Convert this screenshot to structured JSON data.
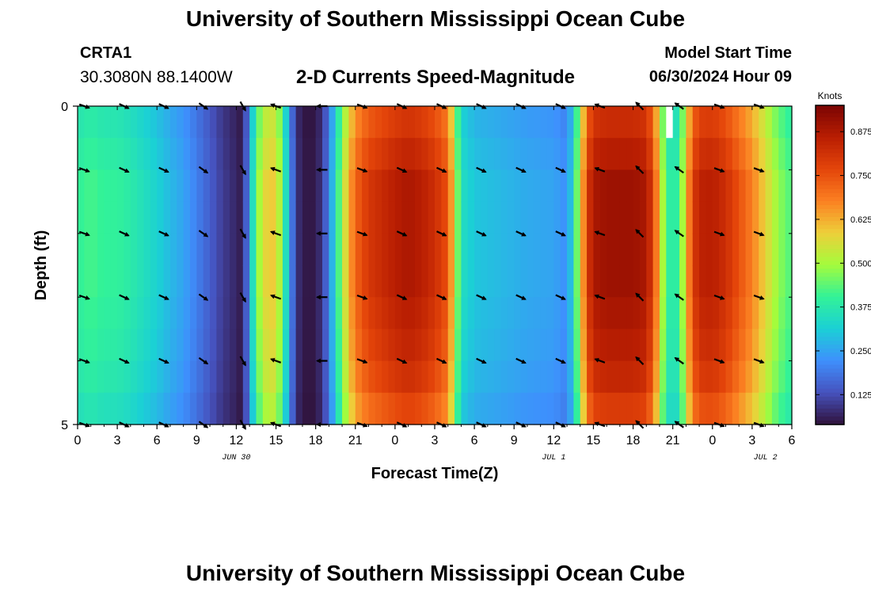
{
  "header": {
    "title": "University of Southern Mississippi Ocean Cube",
    "station_id": "CRTA1",
    "station_coords": "30.3080N  88.1400W",
    "model_label": "Model Start Time",
    "model_time": "06/30/2024 Hour 09"
  },
  "footer": {
    "title": "University of Southern Mississippi Ocean Cube"
  },
  "chart_data": {
    "type": "heatmap",
    "title": "2-D Currents Speed-Magnitude",
    "xlabel": "Forecast Time(Z)",
    "ylabel": "Depth (ft)",
    "colorbar_label": "Knots",
    "xlim_hours": [
      0,
      54
    ],
    "ylim": [
      0,
      5
    ],
    "xticks": [
      {
        "hour": 0,
        "label": "0"
      },
      {
        "hour": 3,
        "label": "3"
      },
      {
        "hour": 6,
        "label": "6"
      },
      {
        "hour": 9,
        "label": "9"
      },
      {
        "hour": 12,
        "label": "12"
      },
      {
        "hour": 15,
        "label": "15"
      },
      {
        "hour": 18,
        "label": "18"
      },
      {
        "hour": 21,
        "label": "21"
      },
      {
        "hour": 24,
        "label": "0"
      },
      {
        "hour": 27,
        "label": "3"
      },
      {
        "hour": 30,
        "label": "6"
      },
      {
        "hour": 33,
        "label": "9"
      },
      {
        "hour": 36,
        "label": "12"
      },
      {
        "hour": 39,
        "label": "15"
      },
      {
        "hour": 42,
        "label": "18"
      },
      {
        "hour": 45,
        "label": "21"
      },
      {
        "hour": 48,
        "label": "0"
      },
      {
        "hour": 51,
        "label": "3"
      },
      {
        "hour": 54,
        "label": "6"
      }
    ],
    "date_labels": [
      {
        "hour": 12,
        "label": "JUN 30"
      },
      {
        "hour": 36,
        "label": "JUL 1"
      },
      {
        "hour": 52,
        "label": "JUL 2"
      }
    ],
    "yticks": [
      {
        "value": 0,
        "label": "0"
      },
      {
        "value": 5,
        "label": "5"
      }
    ],
    "colorbar": {
      "min": 0.04,
      "max": 0.95,
      "ticks": [
        0.125,
        0.25,
        0.375,
        0.5,
        0.625,
        0.75,
        0.875
      ],
      "tick_labels": [
        "0.125",
        "0.250",
        "0.375",
        "0.500",
        "0.625",
        "0.750",
        "0.875"
      ]
    },
    "time_step_hours": 0.5,
    "depth_rows": 10,
    "speed_profile_knots": [
      [
        0,
        0.4
      ],
      [
        1,
        0.42
      ],
      [
        2,
        0.4
      ],
      [
        3,
        0.4
      ],
      [
        4,
        0.38
      ],
      [
        5,
        0.35
      ],
      [
        6,
        0.32
      ],
      [
        7,
        0.28
      ],
      [
        8,
        0.25
      ],
      [
        9,
        0.2
      ],
      [
        10,
        0.15
      ],
      [
        11,
        0.1
      ],
      [
        12,
        0.07
      ],
      [
        12.5,
        0.05
      ],
      [
        13,
        0.25
      ],
      [
        13.5,
        0.45
      ],
      [
        14,
        0.55
      ],
      [
        14.5,
        0.6
      ],
      [
        15,
        0.58
      ],
      [
        15.5,
        0.45
      ],
      [
        16,
        0.25
      ],
      [
        16.5,
        0.1
      ],
      [
        17,
        0.05
      ],
      [
        18,
        0.05
      ],
      [
        18.5,
        0.1
      ],
      [
        19,
        0.2
      ],
      [
        19.5,
        0.35
      ],
      [
        20,
        0.5
      ],
      [
        20.5,
        0.62
      ],
      [
        21,
        0.72
      ],
      [
        22,
        0.8
      ],
      [
        24,
        0.86
      ],
      [
        25,
        0.88
      ],
      [
        26,
        0.86
      ],
      [
        27,
        0.82
      ],
      [
        28,
        0.75
      ],
      [
        28.5,
        0.55
      ],
      [
        29,
        0.35
      ],
      [
        30,
        0.3
      ],
      [
        32,
        0.28
      ],
      [
        34,
        0.26
      ],
      [
        36,
        0.25
      ],
      [
        37,
        0.22
      ],
      [
        37.5,
        0.35
      ],
      [
        38,
        0.55
      ],
      [
        38.5,
        0.78
      ],
      [
        39,
        0.88
      ],
      [
        40,
        0.9
      ],
      [
        42,
        0.9
      ],
      [
        43,
        0.88
      ],
      [
        43.5,
        0.78
      ],
      [
        44,
        0.6
      ],
      [
        44.5,
        0.4
      ],
      [
        45,
        0.38
      ],
      [
        45.5,
        0.4
      ],
      [
        46,
        0.6
      ],
      [
        46.5,
        0.78
      ],
      [
        47,
        0.85
      ],
      [
        48,
        0.86
      ],
      [
        49,
        0.82
      ],
      [
        50,
        0.75
      ],
      [
        51,
        0.68
      ],
      [
        52,
        0.58
      ],
      [
        53,
        0.48
      ],
      [
        54,
        0.42
      ]
    ],
    "depth_modulation": [
      0.92,
      0.96,
      1.0,
      1.0,
      1.0,
      1.0,
      0.98,
      0.96,
      0.93,
      0.88
    ],
    "missing_cell": {
      "hour_start": 44.5,
      "hour_end": 45,
      "depth_start": 0,
      "depth_end": 0.5
    },
    "vector_depths": [
      0,
      1,
      2,
      3,
      4,
      5
    ],
    "vectors": [
      {
        "hour": 0.5,
        "angle_deg": 20
      },
      {
        "hour": 3.5,
        "angle_deg": 25
      },
      {
        "hour": 6.5,
        "angle_deg": 25
      },
      {
        "hour": 9.5,
        "angle_deg": 35
      },
      {
        "hour": 12.5,
        "angle_deg": 60
      },
      {
        "hour": 15,
        "angle_deg": 200
      },
      {
        "hour": 18.5,
        "angle_deg": 180
      },
      {
        "hour": 21.5,
        "angle_deg": 20
      },
      {
        "hour": 24.5,
        "angle_deg": 25
      },
      {
        "hour": 27.5,
        "angle_deg": 25
      },
      {
        "hour": 30.5,
        "angle_deg": 25
      },
      {
        "hour": 33.5,
        "angle_deg": 25
      },
      {
        "hour": 36.5,
        "angle_deg": 25
      },
      {
        "hour": 39.5,
        "angle_deg": 200
      },
      {
        "hour": 42.5,
        "angle_deg": 225
      },
      {
        "hour": 45.5,
        "angle_deg": 215
      },
      {
        "hour": 48.5,
        "angle_deg": 20
      },
      {
        "hour": 51.5,
        "angle_deg": 20
      }
    ]
  }
}
